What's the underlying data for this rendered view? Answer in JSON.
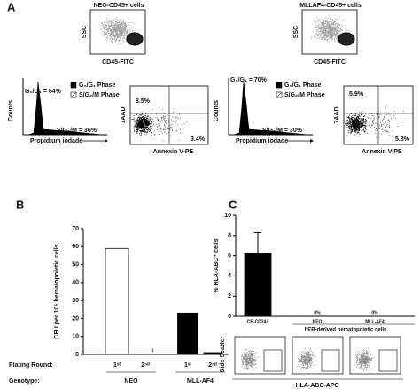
{
  "panel_a": {
    "label": "A",
    "left": {
      "title": "NEO-CD45+ cells",
      "ssc": "SSC",
      "cd45": "CD45-FITC",
      "g0g1": "G₀/G₁ = 64%",
      "sg2m": "S/G₂/M = 36%",
      "counts": "Counts",
      "x_label": "Propidium iodade",
      "legend": [
        "G₀/G₁ Phase",
        "S/G₂/M Phase"
      ],
      "aad": "7AAD",
      "upper_left": "8.5%",
      "lower_right": "3.4%",
      "annexin": "Annexin V-PE"
    },
    "right": {
      "title": "MLLAF4-CD45+ cells",
      "ssc": "SSC",
      "cd45": "CD45-FITC",
      "g0g1": "G₀/G₁ = 70%",
      "sg2m": "S/G₂/M = 30%",
      "counts": "Counts",
      "x_label": "Propidium iodade",
      "legend": [
        "G₀/G₁ Phase",
        "S/G₂/M Phase"
      ],
      "aad": "7AAD",
      "upper_left": "5.9%",
      "lower_right": "5.8%",
      "annexin": "Annexin V-PE"
    }
  },
  "chart_data": [
    {
      "type": "bar",
      "panel": "B",
      "ylabel": "CFU per 10⁵ hematopoietic cells",
      "ylim": [
        0,
        70
      ],
      "yticks": [
        0,
        10,
        20,
        30,
        40,
        50,
        60,
        70
      ],
      "categories": [
        "1ˢᵗ",
        "2ⁿᵈ",
        "1ˢᵗ",
        "2ⁿᵈ"
      ],
      "groups": [
        "NEO",
        "MLL-AF4"
      ],
      "row_labels": [
        "Plating Round:",
        "Genotype:"
      ],
      "values": [
        59,
        0,
        23,
        1
      ],
      "value_labels": [
        null,
        "0",
        null,
        null
      ],
      "colors": [
        "#ffffff",
        "#ffffff",
        "#000000",
        "#000000"
      ]
    },
    {
      "type": "bar",
      "panel": "C",
      "ylabel": "% HLA-ABC⁺ cells",
      "ylim": [
        0,
        10
      ],
      "yticks": [
        0,
        2,
        4,
        6,
        8,
        10
      ],
      "categories": [
        "CB-CD34+",
        "NEO",
        "MLL-AF4"
      ],
      "values": [
        6.2,
        0,
        0
      ],
      "errors": [
        2.1,
        null,
        null
      ],
      "value_labels": [
        null,
        "0%",
        "0%"
      ],
      "colors": [
        "#000000",
        "#000000",
        "#000000"
      ],
      "group_label": "hEB-derived hematopoietic cells",
      "flow": {
        "ylabel": "Side Scatter",
        "xlabel": "HLA-ABC-APC"
      }
    }
  ]
}
